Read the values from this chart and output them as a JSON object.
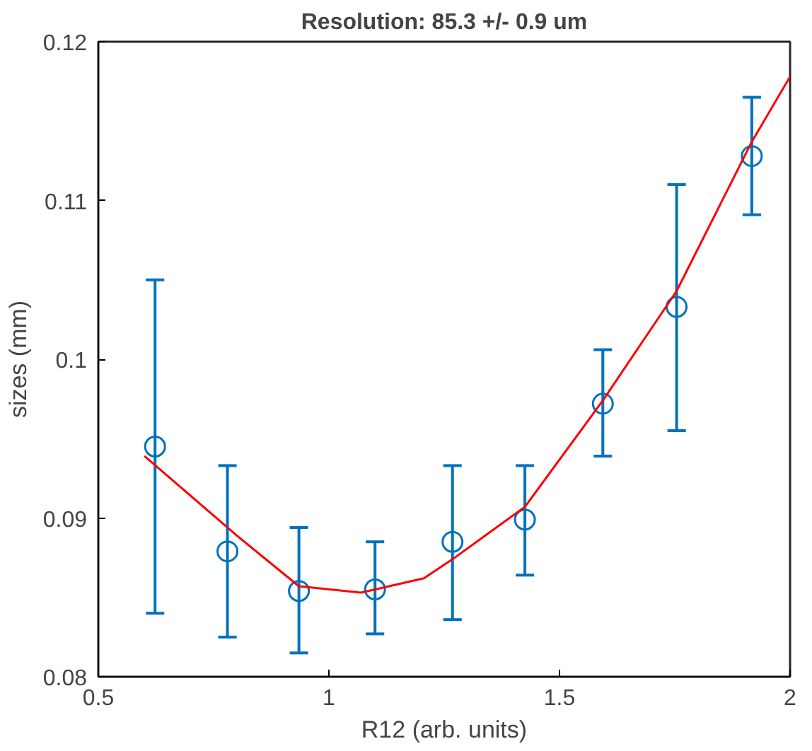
{
  "chart_data": {
    "type": "scatter",
    "title": "Resolution: 85.3 +/- 0.9 um",
    "xlabel": "R12 (arb. units)",
    "ylabel": "sizes (mm)",
    "xlim": [
      0.5,
      2
    ],
    "ylim": [
      0.08,
      0.12
    ],
    "xticks": [
      0.5,
      1,
      1.5,
      2
    ],
    "yticks": [
      0.08,
      0.09,
      {
        "value": 0.1,
        "label": "0.1"
      },
      0.11,
      0.12
    ],
    "grid": false,
    "series": [
      {
        "color": "#0072bd",
        "marker": "circle",
        "x": [
          0.623,
          0.78,
          0.935,
          1.1,
          1.268,
          1.425,
          1.594,
          1.754,
          1.917
        ],
        "values": [
          0.0945,
          0.0879,
          0.0854,
          0.0855,
          0.0885,
          0.0899,
          0.0972,
          0.1033,
          0.1128
        ],
        "errors": [
          [
            0.084,
            0.105
          ],
          [
            0.0825,
            0.0933
          ],
          [
            0.0815,
            0.0894
          ],
          [
            0.0827,
            0.0885
          ],
          [
            0.0836,
            0.0933
          ],
          [
            0.0864,
            0.0933
          ],
          [
            0.0939,
            0.1006
          ],
          [
            0.0955,
            0.111
          ],
          [
            0.1091,
            0.1165
          ]
        ]
      },
      {
        "type": "line",
        "color": "#ff0000",
        "marker": "none",
        "line_style": "solid",
        "x": [
          0.6,
          0.8,
          0.935,
          1.07,
          1.206,
          1.268,
          1.425,
          1.594,
          1.754,
          1.917,
          2.0
        ],
        "values": [
          0.0939,
          0.0889,
          0.0857,
          0.0853,
          0.0862,
          0.0874,
          0.0907,
          0.0974,
          0.1043,
          0.1137,
          0.1178
        ]
      }
    ]
  }
}
